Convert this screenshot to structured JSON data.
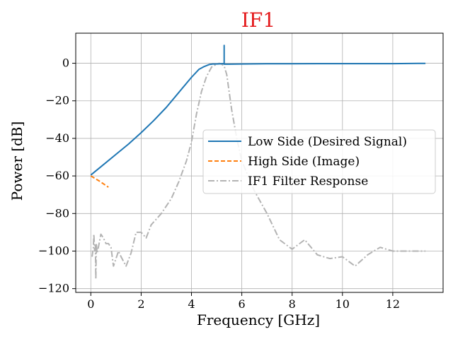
{
  "chart_data": {
    "type": "line",
    "title": "IF1",
    "title_color": "#e41a1c",
    "xlabel": "Frequency [GHz]",
    "ylabel": "Power [dB]",
    "xlim": [
      -0.6,
      14.0
    ],
    "ylim": [
      -122,
      16
    ],
    "xticks": [
      0,
      2,
      4,
      6,
      8,
      10,
      12
    ],
    "yticks": [
      0,
      -20,
      -40,
      -60,
      -80,
      -100,
      -120
    ],
    "xtick_labels": [
      "0",
      "2",
      "4",
      "6",
      "8",
      "10",
      "12"
    ],
    "ytick_labels": [
      "0",
      "−20",
      "−40",
      "−60",
      "−80",
      "−100",
      "−120"
    ],
    "grid": true,
    "legend_position": "center-right",
    "series": [
      {
        "name": "Low Side (Desired Signal)",
        "color": "#1f77b4",
        "style": "solid",
        "x": [
          0,
          0.5,
          1.0,
          1.5,
          2.0,
          2.5,
          3.0,
          3.5,
          4.0,
          4.3,
          4.5,
          4.7,
          4.85,
          5.0,
          5.2,
          5.3,
          5.3,
          5.3,
          5.5,
          6.0,
          7.0,
          8.0,
          9.0,
          10.0,
          11.0,
          12.0,
          13.0,
          13.3
        ],
        "y": [
          -59.5,
          -54,
          -48.5,
          -43,
          -37,
          -30.5,
          -23.5,
          -15.5,
          -7.5,
          -3.2,
          -1.8,
          -0.7,
          -0.4,
          -0.4,
          -0.3,
          -0.2,
          9.5,
          -0.5,
          -0.5,
          -0.4,
          -0.3,
          -0.3,
          -0.2,
          -0.2,
          -0.2,
          -0.2,
          -0.1,
          -0.1
        ]
      },
      {
        "name": "High Side (Image)",
        "color": "#ff7f0e",
        "style": "dashed",
        "x": [
          0,
          0.35,
          0.7
        ],
        "y": [
          -60,
          -62.8,
          -66
        ]
      },
      {
        "name": "IF1 Filter Response",
        "color": "#b3b3b3",
        "style": "dashdot",
        "x": [
          0.05,
          0.1,
          0.12,
          0.15,
          0.18,
          0.2,
          0.22,
          0.25,
          0.3,
          0.4,
          0.5,
          0.6,
          0.7,
          0.8,
          0.9,
          1.0,
          1.1,
          1.2,
          1.4,
          1.6,
          1.8,
          2.0,
          2.2,
          2.4,
          2.6,
          2.8,
          3.0,
          3.2,
          3.5,
          3.8,
          4.0,
          4.2,
          4.4,
          4.6,
          4.8,
          5.0,
          5.1,
          5.2,
          5.3,
          5.4,
          5.6,
          5.8,
          6.0,
          6.5,
          7.0,
          7.5,
          8.0,
          8.5,
          9.0,
          9.5,
          10.0,
          10.5,
          11.0,
          11.5,
          12.0,
          12.5,
          13.0,
          13.3
        ],
        "y": [
          -103,
          -98,
          -91,
          -100,
          -96,
          -115,
          -96,
          -101,
          -98,
          -91,
          -93,
          -96,
          -96,
          -98,
          -108,
          -104,
          -100,
          -103,
          -108,
          -101,
          -90,
          -90,
          -93,
          -86,
          -83,
          -80,
          -76,
          -72,
          -63,
          -52,
          -42,
          -27,
          -15,
          -7,
          -2,
          -0.5,
          0,
          -0.5,
          -1.5,
          -6,
          -25,
          -40,
          -52,
          -68,
          -80,
          -94,
          -99,
          -94,
          -102,
          -104,
          -103,
          -108,
          -102,
          -98,
          -100,
          -100,
          -100,
          -100
        ]
      }
    ]
  }
}
